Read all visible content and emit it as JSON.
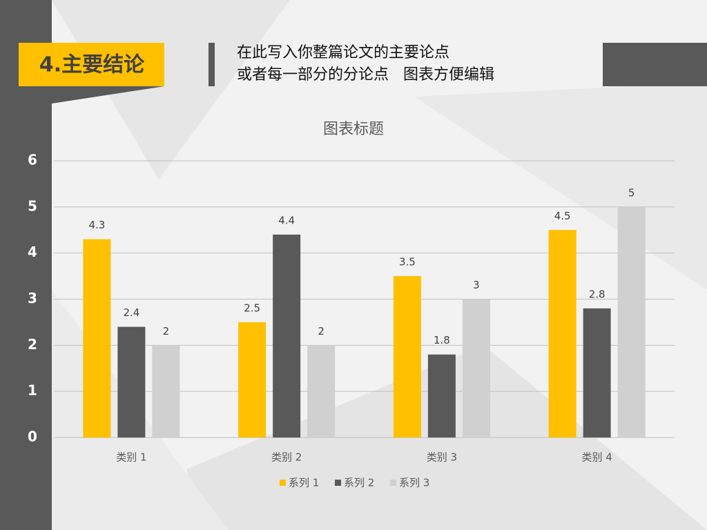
{
  "header": {
    "section": "4.主要结论",
    "lines": [
      "在此写入你整篇论文的主要论点",
      "或者每一部分的分论点   图表方便编辑"
    ]
  },
  "chart_data": {
    "type": "bar",
    "title": "图表标题",
    "categories": [
      "类别 1",
      "类别 2",
      "类别 3",
      "类别 4"
    ],
    "series": [
      {
        "name": "系列 1",
        "color": "#FFC000",
        "values": [
          4.3,
          2.5,
          3.5,
          4.5
        ]
      },
      {
        "name": "系列 2",
        "color": "#595959",
        "values": [
          2.4,
          4.4,
          1.8,
          2.8
        ]
      },
      {
        "name": "系列 3",
        "color": "#D0D0D0",
        "values": [
          2,
          2,
          3,
          5
        ]
      }
    ],
    "ylim": [
      0,
      6
    ],
    "yticks": [
      0,
      1,
      2,
      3,
      4,
      5,
      6
    ],
    "grid": true,
    "legend": "bottom"
  }
}
